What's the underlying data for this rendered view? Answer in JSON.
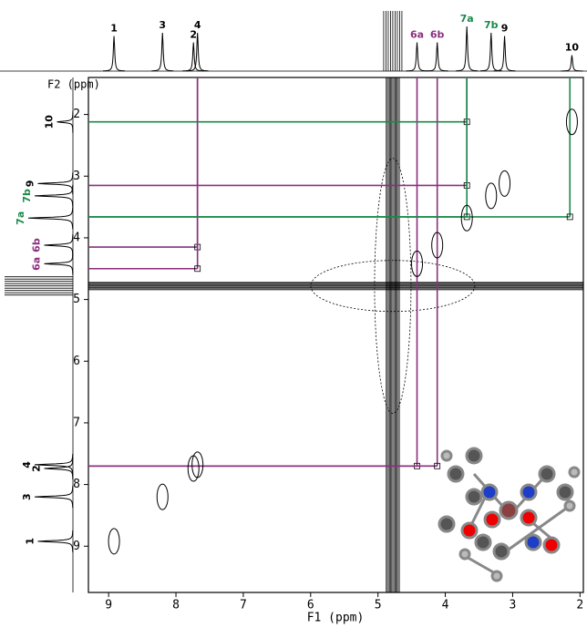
{
  "chart_data": {
    "type": "nmr-2d",
    "x_label": "F1 (ppm)",
    "y_label": "F2 (ppm)",
    "xlim": [
      9.3,
      1.95
    ],
    "ylim": [
      1.4,
      9.75
    ],
    "xticks": [
      9,
      8,
      7,
      6,
      5,
      4,
      3,
      2
    ],
    "yticks": [
      2,
      3,
      4,
      5,
      6,
      7,
      8,
      9
    ],
    "solvent_ppm": 4.78,
    "peaks": [
      {
        "label": "1",
        "ppm": 8.92,
        "height": 0.55,
        "color": "#000000"
      },
      {
        "label": "3",
        "ppm": 8.2,
        "height": 0.6,
        "color": "#000000"
      },
      {
        "label": "2",
        "ppm": 7.74,
        "height": 0.45,
        "color": "#000000"
      },
      {
        "label": "4",
        "ppm": 7.68,
        "height": 0.6,
        "color": "#000000"
      },
      {
        "label": "6a",
        "ppm": 4.42,
        "height": 0.45,
        "color": "#8b2f7e"
      },
      {
        "label": "6b",
        "ppm": 4.12,
        "height": 0.45,
        "color": "#8b2f7e"
      },
      {
        "label": "7a",
        "ppm": 3.68,
        "height": 0.7,
        "color": "#1a8a4a"
      },
      {
        "label": "7b",
        "ppm": 3.32,
        "height": 0.6,
        "color": "#1a8a4a"
      },
      {
        "label": "9",
        "ppm": 3.12,
        "height": 0.55,
        "color": "#000000"
      },
      {
        "label": "10",
        "ppm": 2.12,
        "height": 0.25,
        "color": "#000000"
      }
    ],
    "correlations": [
      {
        "f1": 7.68,
        "f2": 4.15,
        "color": "#8b2f7e"
      },
      {
        "f1": 7.68,
        "f2": 4.5,
        "color": "#8b2f7e"
      },
      {
        "f1": 4.42,
        "f2": 7.7,
        "color": "#8b2f7e"
      },
      {
        "f1": 4.12,
        "f2": 7.7,
        "color": "#8b2f7e"
      },
      {
        "f1": 3.68,
        "f2": 3.15,
        "color": "#8b2f7e"
      },
      {
        "f1": 3.68,
        "f2": 2.12,
        "color": "#1a8a4a"
      },
      {
        "f1": 3.68,
        "f2": 3.66,
        "color": "#1a8a4a"
      },
      {
        "f1": 2.15,
        "f2": 3.66,
        "color": "#1a8a4a"
      }
    ]
  }
}
